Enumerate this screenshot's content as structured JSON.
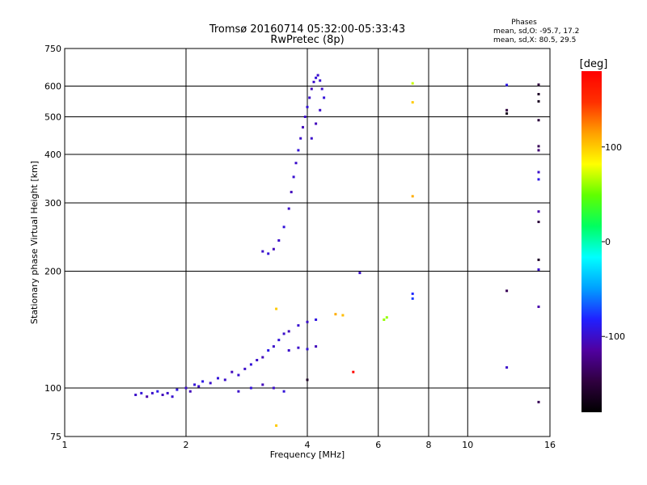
{
  "chart_data": {
    "type": "scatter",
    "title": "Tromsø 20160714 05:32:00-05:33:43",
    "subtitle": "RwPretec (8p)",
    "xlabel": "Frequency [MHz]",
    "ylabel": "Stationary phase Virtual Height [km]",
    "x_scale": "log",
    "y_scale": "log",
    "xlim": [
      1,
      16
    ],
    "ylim": [
      75,
      750
    ],
    "x_ticks": [
      1,
      2,
      4,
      6,
      8,
      10,
      16
    ],
    "y_ticks": [
      75,
      100,
      200,
      300,
      400,
      500,
      600,
      750
    ],
    "grid": true,
    "stats": {
      "title": "Phases",
      "line1": "mean, sd,O: -95.7, 17.2",
      "line2": "mean, sd,X:  80.5, 29.5"
    },
    "colorbar": {
      "label": "[deg]",
      "range": [
        -180,
        180
      ],
      "ticks": [
        100,
        0,
        -100
      ],
      "colors": [
        "#000000",
        "#300040",
        "#5000a0",
        "#2020ff",
        "#00a0ff",
        "#00ffff",
        "#00ff60",
        "#60ff00",
        "#ffff00",
        "#ffa000",
        "#ff3000",
        "#ff0000"
      ]
    },
    "series": [
      {
        "points": [
          [
            1.5,
            96,
            -100
          ],
          [
            1.55,
            97,
            -95
          ],
          [
            1.6,
            95,
            -110
          ],
          [
            1.65,
            97,
            -100
          ],
          [
            1.7,
            98,
            -90
          ],
          [
            1.75,
            96,
            -105
          ],
          [
            1.8,
            97,
            -100
          ],
          [
            1.85,
            95,
            -98
          ],
          [
            1.9,
            99,
            -92
          ],
          [
            2.0,
            100,
            -100
          ],
          [
            2.05,
            98,
            -105
          ],
          [
            2.1,
            102,
            -95
          ],
          [
            2.15,
            101,
            -100
          ],
          [
            2.2,
            104,
            -90
          ],
          [
            2.3,
            103,
            -100
          ],
          [
            2.4,
            106,
            -95
          ],
          [
            2.5,
            105,
            -100
          ],
          [
            2.6,
            110,
            -105
          ],
          [
            2.7,
            108,
            -98
          ],
          [
            2.8,
            112,
            -100
          ],
          [
            2.9,
            115,
            -95
          ],
          [
            3.0,
            118,
            -100
          ],
          [
            3.1,
            120,
            -105
          ],
          [
            3.2,
            125,
            -90
          ],
          [
            3.3,
            128,
            -100
          ],
          [
            3.4,
            133,
            -95
          ],
          [
            3.5,
            138,
            -100
          ],
          [
            3.6,
            140,
            -105
          ],
          [
            3.8,
            145,
            -98
          ],
          [
            4.0,
            148,
            -100
          ],
          [
            4.2,
            150,
            -92
          ],
          [
            3.6,
            125,
            -100
          ],
          [
            3.8,
            127,
            -100
          ],
          [
            4.0,
            126,
            -95
          ],
          [
            4.2,
            128,
            -105
          ],
          [
            2.7,
            98,
            -100
          ],
          [
            2.9,
            100,
            -95
          ],
          [
            3.1,
            102,
            -105
          ],
          [
            3.3,
            100,
            -100
          ],
          [
            3.5,
            98,
            -95
          ]
        ]
      },
      {
        "points": [
          [
            3.1,
            225,
            -100
          ],
          [
            3.2,
            222,
            -95
          ],
          [
            3.3,
            228,
            -105
          ],
          [
            3.4,
            240,
            -100
          ],
          [
            3.5,
            260,
            -95
          ],
          [
            3.6,
            290,
            -100
          ],
          [
            3.65,
            320,
            -105
          ],
          [
            3.7,
            350,
            -98
          ],
          [
            3.75,
            380,
            -100
          ],
          [
            3.8,
            410,
            -95
          ],
          [
            3.85,
            440,
            -100
          ],
          [
            3.9,
            470,
            -105
          ],
          [
            3.95,
            500,
            -100
          ],
          [
            4.0,
            530,
            -95
          ],
          [
            4.05,
            560,
            -100
          ],
          [
            4.1,
            590,
            -105
          ],
          [
            4.15,
            615,
            -100
          ],
          [
            4.2,
            630,
            -95
          ],
          [
            4.25,
            640,
            -100
          ],
          [
            4.3,
            620,
            -98
          ],
          [
            4.35,
            590,
            -100
          ],
          [
            4.4,
            560,
            -95
          ],
          [
            4.3,
            520,
            -100
          ],
          [
            4.2,
            480,
            -105
          ],
          [
            4.1,
            440,
            -100
          ]
        ]
      },
      {
        "points": [
          [
            3.35,
            160,
            100
          ],
          [
            3.35,
            80,
            100
          ],
          [
            4.7,
            155,
            110
          ],
          [
            4.9,
            154,
            105
          ],
          [
            6.2,
            150,
            60
          ],
          [
            6.3,
            152,
            60
          ],
          [
            7.3,
            610,
            70
          ],
          [
            7.3,
            545,
            100
          ],
          [
            7.3,
            312,
            110
          ],
          [
            7.3,
            175,
            -80
          ],
          [
            7.3,
            170,
            -75
          ],
          [
            5.2,
            110,
            175
          ],
          [
            5.4,
            198,
            -100
          ],
          [
            4.0,
            105,
            -160
          ],
          [
            12.5,
            604,
            -90
          ],
          [
            12.5,
            520,
            -150
          ],
          [
            12.5,
            510,
            -170
          ],
          [
            12.5,
            178,
            -140
          ],
          [
            12.5,
            113,
            -100
          ],
          [
            15.0,
            605,
            -150
          ],
          [
            15.0,
            572,
            -160
          ],
          [
            15.0,
            548,
            -165
          ],
          [
            15.0,
            490,
            -150
          ],
          [
            15.0,
            420,
            -140
          ],
          [
            15.0,
            410,
            -130
          ],
          [
            15.0,
            360,
            -100
          ],
          [
            15.0,
            345,
            -90
          ],
          [
            15.0,
            285,
            -110
          ],
          [
            15.0,
            268,
            -150
          ],
          [
            15.0,
            214,
            -160
          ],
          [
            15.0,
            202,
            -100
          ],
          [
            15.0,
            162,
            -110
          ],
          [
            15.0,
            92,
            -140
          ]
        ]
      }
    ]
  }
}
